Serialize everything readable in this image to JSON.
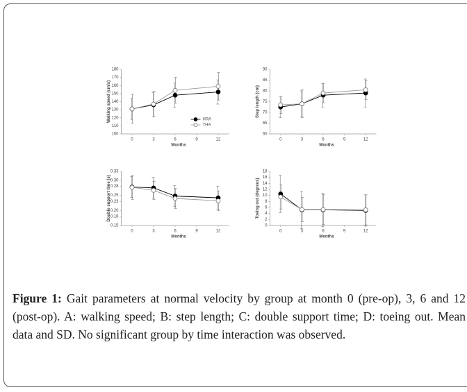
{
  "chart_data": [
    {
      "type": "line",
      "ylabel": "Walking speed (cm/s)",
      "xlabel": "Months",
      "x": [
        0,
        3,
        6,
        12
      ],
      "xlim": [
        -1.5,
        13.5
      ],
      "xticks": [
        0,
        3,
        6,
        9,
        12
      ],
      "ylim": [
        100,
        180
      ],
      "yticks": [
        100,
        110,
        120,
        130,
        140,
        150,
        160,
        170,
        180
      ],
      "legend": "right",
      "series": [
        {
          "name": "HRA",
          "color": "#000000",
          "marker": "filled",
          "values": [
            131,
            136,
            148,
            152
          ],
          "errors": [
            13,
            15,
            15,
            15
          ]
        },
        {
          "name": "THA",
          "color": "#000000",
          "marker": "open",
          "values": [
            131,
            137,
            154,
            159
          ],
          "errors": [
            18,
            16,
            16,
            17
          ]
        }
      ]
    },
    {
      "type": "line",
      "ylabel": "Step length (cm)",
      "xlabel": "Months",
      "x": [
        0,
        3,
        6,
        12
      ],
      "xlim": [
        -1.5,
        13.5
      ],
      "xticks": [
        0,
        3,
        6,
        9,
        12
      ],
      "ylim": [
        60,
        90
      ],
      "yticks": [
        60,
        65,
        70,
        75,
        80,
        85,
        90
      ],
      "series": [
        {
          "color": "#000000",
          "marker": "filled",
          "values": [
            72.5,
            74,
            78,
            79
          ],
          "errors": [
            5,
            6,
            5.5,
            6.5
          ]
        },
        {
          "color": "#000000",
          "marker": "open",
          "values": [
            73.5,
            74,
            79,
            80.5
          ],
          "errors": [
            4,
            6.5,
            4.5,
            4.5
          ]
        }
      ]
    },
    {
      "type": "line",
      "ylabel": "Double support time (s)",
      "xlabel": "Months",
      "x": [
        0,
        3,
        6,
        12
      ],
      "xlim": [
        -1.5,
        13.5
      ],
      "xticks": [
        0,
        3,
        6,
        9,
        12
      ],
      "ylim": [
        0.15,
        0.33
      ],
      "yticks": [
        0.15,
        0.18,
        {
          "value": 0.2,
          "label": "0.20"
        },
        0.23,
        0.25,
        0.28,
        {
          "value": 0.3,
          "label": "0.30"
        },
        0.33
      ],
      "series": [
        {
          "color": "#000000",
          "marker": "filled",
          "values": [
            0.278,
            0.275,
            0.248,
            0.242
          ],
          "errors": [
            0.035,
            0.035,
            0.035,
            0.038
          ]
        },
        {
          "color": "#000000",
          "marker": "open",
          "values": [
            0.277,
            0.267,
            0.24,
            0.232
          ],
          "errors": [
            0.04,
            0.03,
            0.033,
            0.033
          ]
        }
      ]
    },
    {
      "type": "line",
      "ylabel": "Toeing out (degrees)",
      "xlabel": "Months",
      "x": [
        0,
        3,
        6,
        12
      ],
      "xlim": [
        -1.5,
        13.5
      ],
      "xticks": [
        0,
        3,
        6,
        9,
        12
      ],
      "ylim": [
        0,
        18
      ],
      "yticks": [
        0,
        2,
        4,
        6,
        8,
        10,
        12,
        14,
        16,
        18
      ],
      "series": [
        {
          "color": "#000000",
          "marker": "filled",
          "values": [
            10.5,
            5.2,
            5.2,
            5.0
          ],
          "errors": [
            6.2,
            6.2,
            5.5,
            5.2
          ]
        },
        {
          "color": "#000000",
          "marker": "open",
          "values": [
            9.5,
            5.3,
            5.3,
            5.2
          ],
          "errors": [
            4,
            4,
            5,
            5
          ]
        }
      ]
    }
  ],
  "caption": {
    "label": "Figure 1:",
    "text": "Gait parameters at normal velocity by group at month 0 (pre-op), 3, 6 and 12 (post-op). A: walking speed; B: step length; C: double support time; D: toeing out. Mean data and SD. No significant group by time interaction was observed."
  }
}
